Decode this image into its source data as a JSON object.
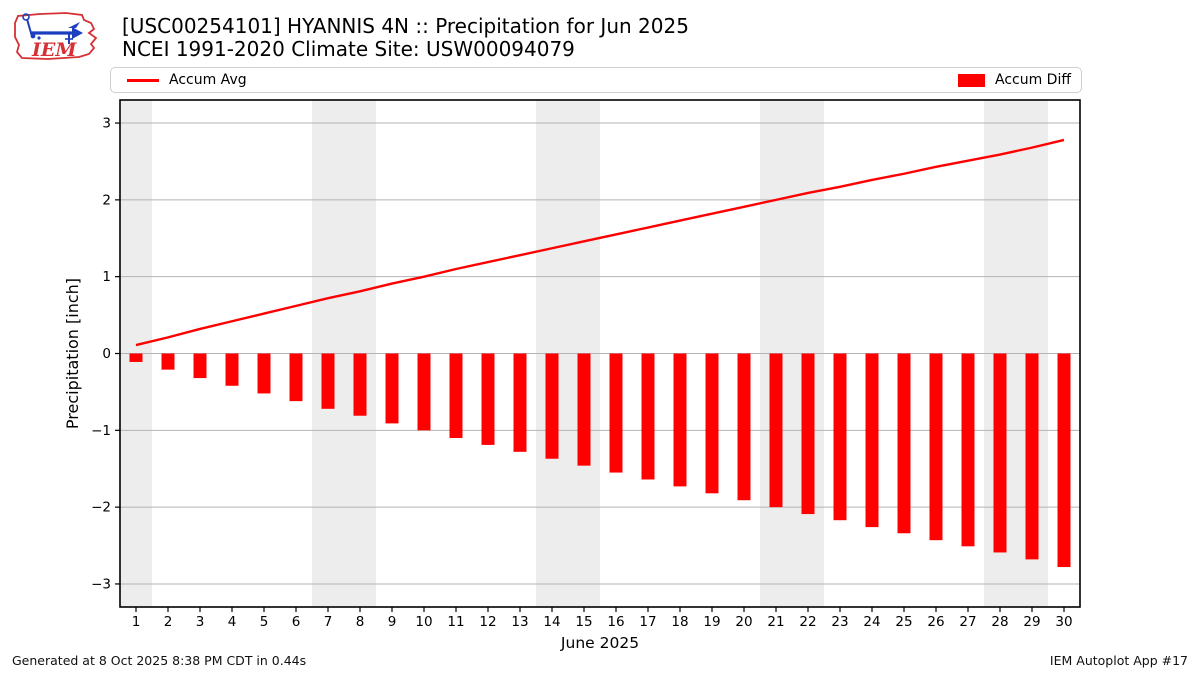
{
  "header": {
    "logo_text": "IEM",
    "title_line1": "[USC00254101] HYANNIS 4N :: Precipitation for Jun 2025",
    "title_line2": "NCEI 1991-2020 Climate Site: USW00094079"
  },
  "legend": {
    "accum_avg_label": "Accum Avg",
    "accum_diff_label": "Accum Diff"
  },
  "footer": {
    "generated": "Generated at 8 Oct 2025 8:38 PM CDT in 0.44s",
    "app": "IEM Autoplot App #17"
  },
  "colors": {
    "accent_red": "#ff0000",
    "weekend_band": "#ededed",
    "gridline": "#b3b3b3",
    "axis": "#000000",
    "logo_red": "#d63034",
    "logo_blue": "#1c3fbf"
  },
  "chart_data": {
    "type": "bar",
    "title": "[USC00254101] HYANNIS 4N :: Precipitation for Jun 2025",
    "subtitle": "NCEI 1991-2020 Climate Site: USW00094079",
    "xlabel": "June 2025",
    "ylabel": "Precipitation [inch]",
    "legend_position": "top",
    "grid": "horizontal",
    "x": [
      1,
      2,
      3,
      4,
      5,
      6,
      7,
      8,
      9,
      10,
      11,
      12,
      13,
      14,
      15,
      16,
      17,
      18,
      19,
      20,
      21,
      22,
      23,
      24,
      25,
      26,
      27,
      28,
      29,
      30
    ],
    "xticks": [
      1,
      2,
      3,
      4,
      5,
      6,
      7,
      8,
      9,
      10,
      11,
      12,
      13,
      14,
      15,
      16,
      17,
      18,
      19,
      20,
      21,
      22,
      23,
      24,
      25,
      26,
      27,
      28,
      29,
      30
    ],
    "yticks": [
      -3,
      -2,
      -1,
      0,
      1,
      2,
      3
    ],
    "xlim": [
      0.5,
      30.5
    ],
    "ylim": [
      -3.3,
      3.3
    ],
    "weekend_bands": [
      [
        0.5,
        1.5
      ],
      [
        6.5,
        8.5
      ],
      [
        13.5,
        15.5
      ],
      [
        20.5,
        22.5
      ],
      [
        27.5,
        29.5
      ]
    ],
    "series": [
      {
        "name": "Accum Avg",
        "type": "line",
        "color": "#ff0000",
        "values": [
          0.11,
          0.21,
          0.32,
          0.42,
          0.52,
          0.62,
          0.72,
          0.81,
          0.91,
          1.0,
          1.1,
          1.19,
          1.28,
          1.37,
          1.46,
          1.55,
          1.64,
          1.73,
          1.82,
          1.91,
          2.0,
          2.09,
          2.17,
          2.26,
          2.34,
          2.43,
          2.51,
          2.59,
          2.68,
          2.78
        ]
      },
      {
        "name": "Accum Diff",
        "type": "bar",
        "color": "#ff0000",
        "values": [
          -0.11,
          -0.21,
          -0.32,
          -0.42,
          -0.52,
          -0.62,
          -0.72,
          -0.81,
          -0.91,
          -1.0,
          -1.1,
          -1.19,
          -1.28,
          -1.37,
          -1.46,
          -1.55,
          -1.64,
          -1.73,
          -1.82,
          -1.91,
          -2.0,
          -2.09,
          -2.17,
          -2.26,
          -2.34,
          -2.43,
          -2.51,
          -2.59,
          -2.68,
          -2.78
        ]
      }
    ]
  }
}
